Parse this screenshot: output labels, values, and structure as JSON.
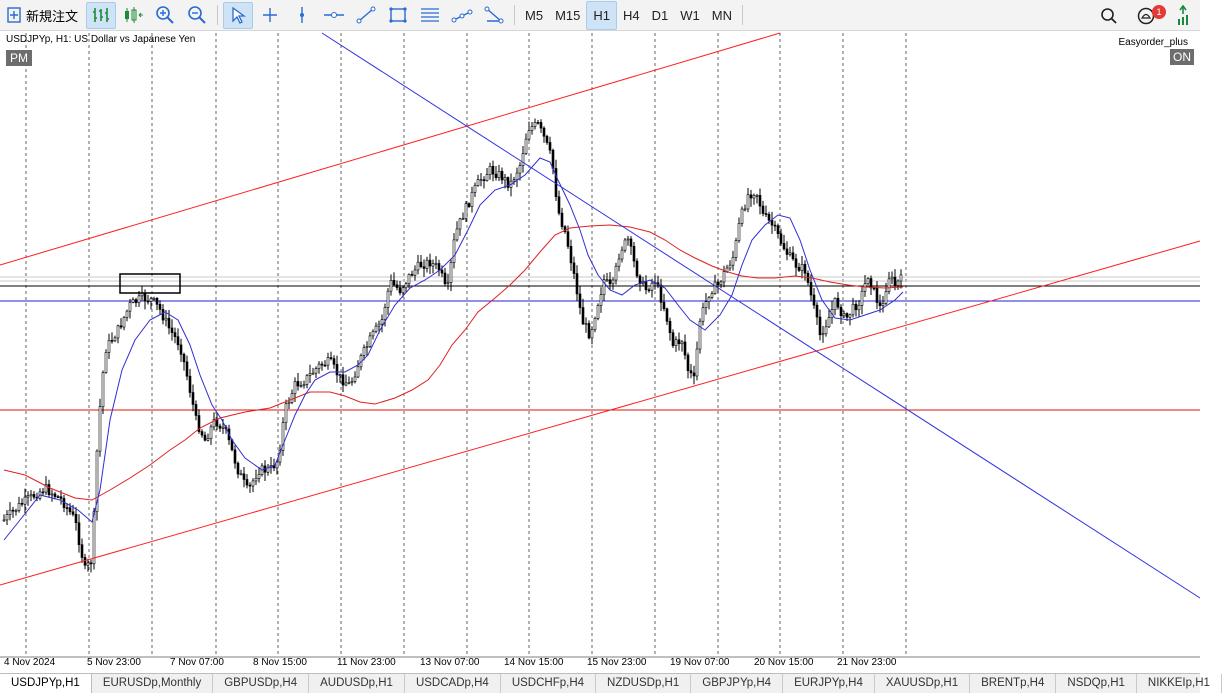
{
  "toolbar": {
    "new_order_label": "新規注文",
    "timeframes": [
      {
        "label": "M5",
        "active": false
      },
      {
        "label": "M15",
        "active": false
      },
      {
        "label": "H1",
        "active": true
      },
      {
        "label": "H4",
        "active": false
      },
      {
        "label": "D1",
        "active": false
      },
      {
        "label": "W1",
        "active": false
      },
      {
        "label": "MN",
        "active": false
      }
    ],
    "notification_count": "1",
    "icons": [
      "chart-bar-icon",
      "chart-candle-icon",
      "zoom-in-icon",
      "zoom-out-icon",
      "cursor-icon",
      "crosshair-icon",
      "vertical-line-icon",
      "horizontal-line-icon",
      "trend-line-icon",
      "rectangle-icon",
      "fibonacci-icon",
      "channel-icon",
      "triangle-icon",
      "search-icon",
      "notification-icon",
      "signal-icon"
    ]
  },
  "chart": {
    "title": "USDJPYp, H1:  US Dollar vs Japanese Yen",
    "pm_label": "PM",
    "ea_label": "Easyorder_plus",
    "on_label": "ON",
    "x_labels": [
      "4 Nov 2024",
      "5 Nov 23:00",
      "7 Nov 07:00",
      "8 Nov 15:00",
      "11 Nov 23:00",
      "13 Nov 07:00",
      "14 Nov 15:00",
      "15 Nov 23:00",
      "19 Nov 07:00",
      "20 Nov 15:00",
      "21 Nov 23:00"
    ],
    "colors": {
      "ma_fast": "#2f2fd0",
      "ma_slow": "#e02020",
      "channel": "#ff2020",
      "trendline": "#3030e0",
      "hline_blue": "#2020d0",
      "hline_red": "#e01010",
      "candle": "#000000"
    }
  },
  "chart_data": {
    "type": "candlestick",
    "symbol": "USDJPYp",
    "timeframe": "H1",
    "x_range": [
      "4 Nov 2024",
      "21 Nov 23:00"
    ],
    "indicators": [
      "moving average (fast)",
      "moving average (slow)"
    ],
    "objects": [
      "rising channel",
      "descending trendline",
      "horizontal lines",
      "rectangle"
    ]
  },
  "tabs": [
    "USDJPYp,H1",
    "EURUSDp,Monthly",
    "GBPUSDp,H4",
    "AUDUSDp,H1",
    "USDCADp,H4",
    "USDCHFp,H4",
    "NZDUSDp,H1",
    "GBPJPYp,H4",
    "EURJPYp,H4",
    "XAUUSDp,H1",
    "BRENTp,H4",
    "NSDQp,H1",
    "NIKKEIp,H1"
  ]
}
